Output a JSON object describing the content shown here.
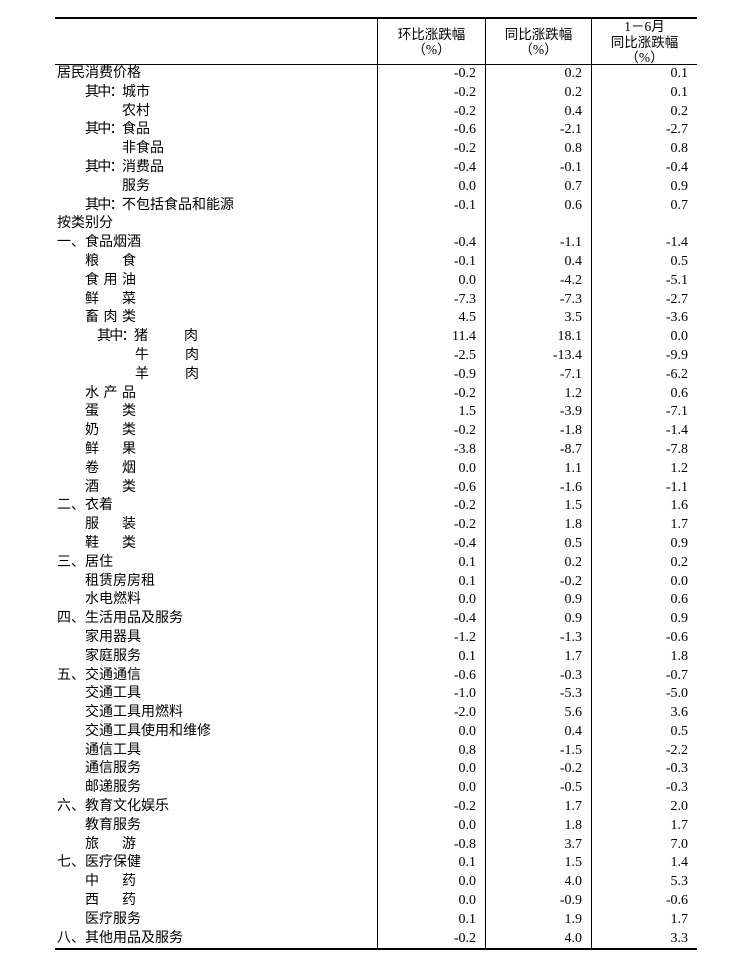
{
  "table": {
    "header": {
      "label_col": "",
      "mom": {
        "line1": "环比涨跌幅",
        "line2": "（%）"
      },
      "yoy": {
        "line1": "同比涨跌幅",
        "line2": "（%）"
      },
      "ytd": {
        "line1": "1－6月",
        "line2": "同比涨跌幅",
        "line3": "（%）"
      }
    },
    "rows": [
      {
        "prefix": "",
        "label": "居民消费价格",
        "level": 0,
        "spread": false,
        "values": [
          "-0.2",
          "0.2",
          "0.1"
        ]
      },
      {
        "prefix": "其中：",
        "label": "城市",
        "level": 1,
        "spread": false,
        "values": [
          "-0.2",
          "0.2",
          "0.1"
        ]
      },
      {
        "prefix": "",
        "label": "农村",
        "level": 2,
        "spread": false,
        "values": [
          "-0.2",
          "0.4",
          "0.2"
        ]
      },
      {
        "prefix": "其中：",
        "label": "食品",
        "level": 1,
        "spread": false,
        "values": [
          "-0.6",
          "-2.1",
          "-2.7"
        ]
      },
      {
        "prefix": "",
        "label": "非食品",
        "level": 2,
        "spread": false,
        "values": [
          "-0.2",
          "0.8",
          "0.8"
        ]
      },
      {
        "prefix": "其中：",
        "label": "消费品",
        "level": 1,
        "spread": false,
        "values": [
          "-0.4",
          "-0.1",
          "-0.4"
        ]
      },
      {
        "prefix": "",
        "label": "服务",
        "level": 2,
        "spread": false,
        "values": [
          "0.0",
          "0.7",
          "0.9"
        ]
      },
      {
        "prefix": "其中：",
        "label": "不包括食品和能源",
        "level": 1,
        "spread": false,
        "values": [
          "-0.1",
          "0.6",
          "0.7"
        ]
      },
      {
        "prefix": "",
        "label": "按类别分",
        "level": 0,
        "spread": false,
        "values": [
          "",
          "",
          ""
        ]
      },
      {
        "prefix": "",
        "label": "一、食品烟酒",
        "level": 0,
        "spread": false,
        "values": [
          "-0.4",
          "-1.1",
          "-1.4"
        ]
      },
      {
        "prefix": "",
        "label": "粮食",
        "level": 1,
        "spread": true,
        "values": [
          "-0.1",
          "0.4",
          "0.5"
        ]
      },
      {
        "prefix": "",
        "label": "食用油",
        "level": 1,
        "spread": true,
        "values": [
          "0.0",
          "-4.2",
          "-5.1"
        ]
      },
      {
        "prefix": "",
        "label": "鲜菜",
        "level": 1,
        "spread": true,
        "values": [
          "-7.3",
          "-7.3",
          "-2.7"
        ]
      },
      {
        "prefix": "",
        "label": "畜肉类",
        "level": 1,
        "spread": true,
        "values": [
          "4.5",
          "3.5",
          "-3.6"
        ]
      },
      {
        "prefix": "其中：",
        "label": "猪肉",
        "level": 3,
        "spread": true,
        "values": [
          "11.4",
          "18.1",
          "0.0"
        ]
      },
      {
        "prefix": "",
        "label": "牛肉",
        "level": 4,
        "spread": true,
        "values": [
          "-2.5",
          "-13.4",
          "-9.9"
        ]
      },
      {
        "prefix": "",
        "label": "羊肉",
        "level": 4,
        "spread": true,
        "values": [
          "-0.9",
          "-7.1",
          "-6.2"
        ]
      },
      {
        "prefix": "",
        "label": "水产品",
        "level": 1,
        "spread": true,
        "values": [
          "-0.2",
          "1.2",
          "0.6"
        ]
      },
      {
        "prefix": "",
        "label": "蛋类",
        "level": 1,
        "spread": true,
        "values": [
          "1.5",
          "-3.9",
          "-7.1"
        ]
      },
      {
        "prefix": "",
        "label": "奶类",
        "level": 1,
        "spread": true,
        "values": [
          "-0.2",
          "-1.8",
          "-1.4"
        ]
      },
      {
        "prefix": "",
        "label": "鲜果",
        "level": 1,
        "spread": true,
        "values": [
          "-3.8",
          "-8.7",
          "-7.8"
        ]
      },
      {
        "prefix": "",
        "label": "卷烟",
        "level": 1,
        "spread": true,
        "values": [
          "0.0",
          "1.1",
          "1.2"
        ]
      },
      {
        "prefix": "",
        "label": "酒类",
        "level": 1,
        "spread": true,
        "values": [
          "-0.6",
          "-1.6",
          "-1.1"
        ]
      },
      {
        "prefix": "",
        "label": "二、衣着",
        "level": 0,
        "spread": false,
        "values": [
          "-0.2",
          "1.5",
          "1.6"
        ]
      },
      {
        "prefix": "",
        "label": "服装",
        "level": 1,
        "spread": true,
        "values": [
          "-0.2",
          "1.8",
          "1.7"
        ]
      },
      {
        "prefix": "",
        "label": "鞋类",
        "level": 1,
        "spread": true,
        "values": [
          "-0.4",
          "0.5",
          "0.9"
        ]
      },
      {
        "prefix": "",
        "label": "三、居住",
        "level": 0,
        "spread": false,
        "values": [
          "0.1",
          "0.2",
          "0.2"
        ]
      },
      {
        "prefix": "",
        "label": "租赁房房租",
        "level": 1,
        "spread": false,
        "values": [
          "0.1",
          "-0.2",
          "0.0"
        ]
      },
      {
        "prefix": "",
        "label": "水电燃料",
        "level": 1,
        "spread": false,
        "values": [
          "0.0",
          "0.9",
          "0.6"
        ]
      },
      {
        "prefix": "",
        "label": "四、生活用品及服务",
        "level": 0,
        "spread": false,
        "values": [
          "-0.4",
          "0.9",
          "0.9"
        ]
      },
      {
        "prefix": "",
        "label": "家用器具",
        "level": 1,
        "spread": false,
        "values": [
          "-1.2",
          "-1.3",
          "-0.6"
        ]
      },
      {
        "prefix": "",
        "label": "家庭服务",
        "level": 1,
        "spread": false,
        "values": [
          "0.1",
          "1.7",
          "1.8"
        ]
      },
      {
        "prefix": "",
        "label": "五、交通通信",
        "level": 0,
        "spread": false,
        "values": [
          "-0.6",
          "-0.3",
          "-0.7"
        ]
      },
      {
        "prefix": "",
        "label": "交通工具",
        "level": 1,
        "spread": false,
        "values": [
          "-1.0",
          "-5.3",
          "-5.0"
        ]
      },
      {
        "prefix": "",
        "label": "交通工具用燃料",
        "level": 1,
        "spread": false,
        "values": [
          "-2.0",
          "5.6",
          "3.6"
        ]
      },
      {
        "prefix": "",
        "label": "交通工具使用和维修",
        "level": 1,
        "spread": false,
        "values": [
          "0.0",
          "0.4",
          "0.5"
        ]
      },
      {
        "prefix": "",
        "label": "通信工具",
        "level": 1,
        "spread": false,
        "values": [
          "0.8",
          "-1.5",
          "-2.2"
        ]
      },
      {
        "prefix": "",
        "label": "通信服务",
        "level": 1,
        "spread": false,
        "values": [
          "0.0",
          "-0.2",
          "-0.3"
        ]
      },
      {
        "prefix": "",
        "label": "邮递服务",
        "level": 1,
        "spread": false,
        "values": [
          "0.0",
          "-0.5",
          "-0.3"
        ]
      },
      {
        "prefix": "",
        "label": "六、教育文化娱乐",
        "level": 0,
        "spread": false,
        "values": [
          "-0.2",
          "1.7",
          "2.0"
        ]
      },
      {
        "prefix": "",
        "label": "教育服务",
        "level": 1,
        "spread": false,
        "values": [
          "0.0",
          "1.8",
          "1.7"
        ]
      },
      {
        "prefix": "",
        "label": "旅游",
        "level": 1,
        "spread": true,
        "values": [
          "-0.8",
          "3.7",
          "7.0"
        ]
      },
      {
        "prefix": "",
        "label": "七、医疗保健",
        "level": 0,
        "spread": false,
        "values": [
          "0.1",
          "1.5",
          "1.4"
        ]
      },
      {
        "prefix": "",
        "label": "中药",
        "level": 1,
        "spread": true,
        "values": [
          "0.0",
          "4.0",
          "5.3"
        ]
      },
      {
        "prefix": "",
        "label": "西药",
        "level": 1,
        "spread": true,
        "values": [
          "0.0",
          "-0.9",
          "-0.6"
        ]
      },
      {
        "prefix": "",
        "label": "医疗服务",
        "level": 1,
        "spread": false,
        "values": [
          "0.1",
          "1.9",
          "1.7"
        ]
      },
      {
        "prefix": "",
        "label": "八、其他用品及服务",
        "level": 0,
        "spread": false,
        "values": [
          "-0.2",
          "4.0",
          "3.3"
        ]
      }
    ]
  }
}
